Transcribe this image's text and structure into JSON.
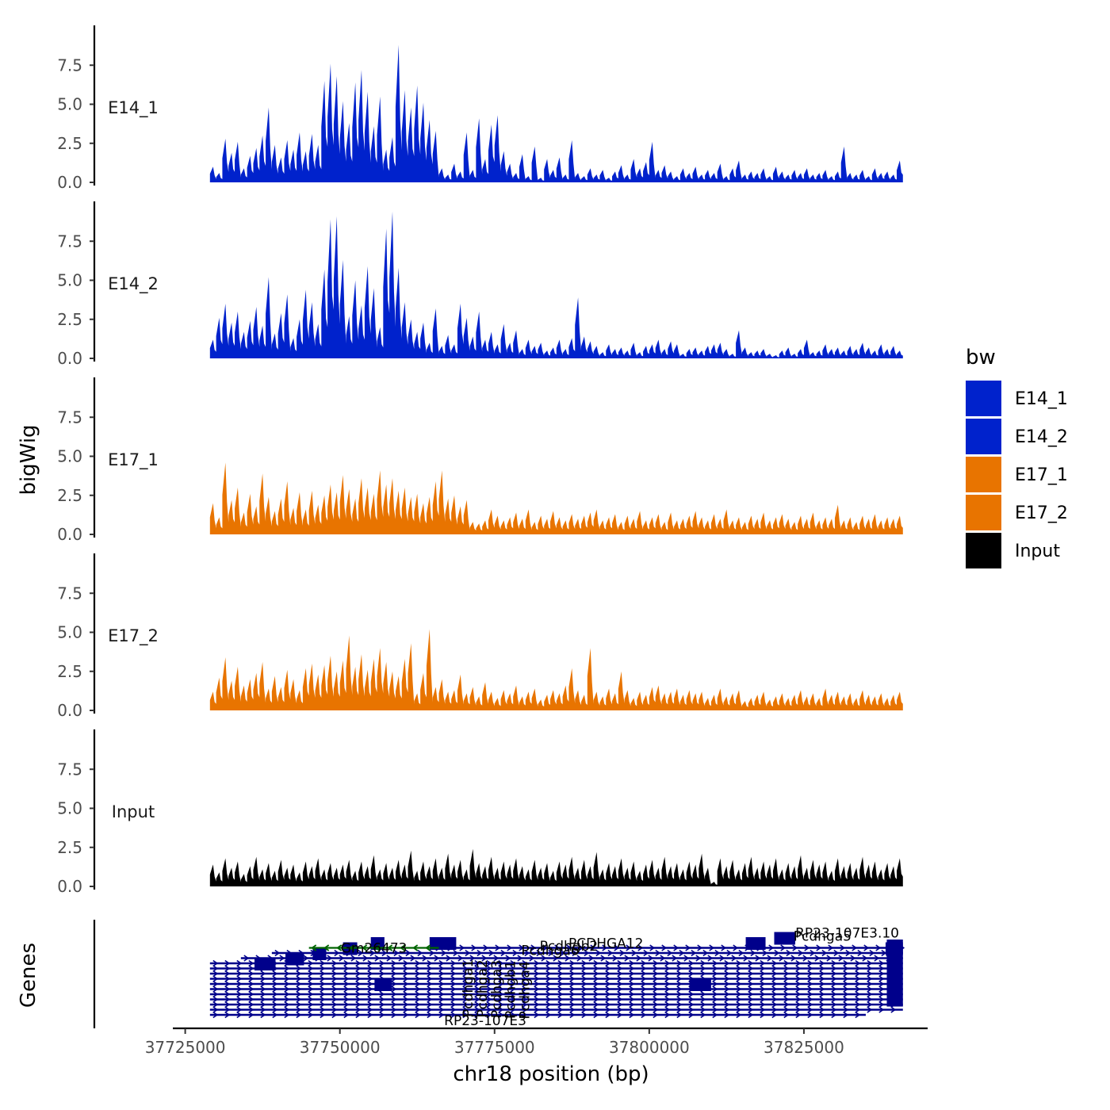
{
  "chart_data": {
    "type": "area",
    "title": "",
    "xlabel": "chr18 position (bp)",
    "ylabel": "bigWig",
    "genes_label": "Genes",
    "xlim": [
      37723000,
      37845000
    ],
    "x_ticks": [
      37725000,
      37750000,
      37775000,
      37800000,
      37825000
    ],
    "x_tick_labels": [
      "37725000",
      "37750000",
      "37775000",
      "37800000",
      "37825000"
    ],
    "ylim": [
      0,
      10
    ],
    "y_ticks": [
      0,
      2.5,
      5,
      7.5
    ],
    "y_tick_labels": [
      "0.0",
      "2.5",
      "5.0",
      "7.5"
    ],
    "colors": {
      "E14": "#0022cc",
      "E17": "#e87400",
      "Input": "#000000",
      "gene": "#00008b",
      "gene_minus": "#006400"
    },
    "series": [
      {
        "name": "E14_1",
        "color": "#0022cc",
        "x_start": 37729000,
        "x_end": 37841000,
        "values": [
          1.0,
          0.6,
          2.8,
          1.9,
          2.6,
          0.9,
          1.7,
          2.2,
          3.0,
          4.8,
          2.4,
          1.6,
          2.7,
          2.1,
          3.2,
          2.0,
          3.1,
          2.4,
          6.5,
          7.6,
          6.8,
          5.2,
          3.8,
          6.4,
          7.2,
          5.8,
          3.6,
          5.5,
          2.1,
          2.9,
          8.8,
          5.9,
          4.8,
          6.2,
          5.1,
          4.0,
          3.3,
          0.9,
          0.5,
          1.2,
          0.7,
          3.2,
          0.8,
          4.1,
          1.5,
          3.7,
          4.3,
          2.0,
          1.2,
          0.6,
          1.8,
          0.4,
          2.3,
          0.3,
          1.5,
          0.8,
          1.6,
          0.5,
          2.7,
          0.6,
          0.4,
          0.9,
          0.5,
          0.8,
          0.3,
          0.7,
          1.1,
          0.5,
          1.5,
          0.9,
          1.3,
          2.6,
          0.8,
          1.1,
          0.7,
          0.4,
          0.9,
          0.6,
          1.0,
          0.5,
          0.8,
          0.6,
          1.2,
          0.4,
          0.9,
          1.4,
          0.5,
          0.7,
          0.6,
          0.9,
          0.4,
          1.0,
          0.7,
          0.5,
          0.8,
          0.6,
          0.9,
          0.5,
          0.6,
          0.8,
          0.4,
          0.7,
          2.3,
          0.6,
          0.5,
          0.8,
          0.4,
          0.9,
          0.6,
          0.7,
          0.5,
          1.4
        ]
      },
      {
        "name": "E14_2",
        "color": "#0022cc",
        "x_start": 37729000,
        "x_end": 37841000,
        "values": [
          1.2,
          2.6,
          3.5,
          2.3,
          3.0,
          1.7,
          2.4,
          3.3,
          2.1,
          5.2,
          1.6,
          2.9,
          4.1,
          1.3,
          2.5,
          4.4,
          3.6,
          2.2,
          5.7,
          8.9,
          9.1,
          6.3,
          2.7,
          5.0,
          3.4,
          5.9,
          4.5,
          2.0,
          8.3,
          9.4,
          5.8,
          3.6,
          2.5,
          1.7,
          2.3,
          1.0,
          3.2,
          0.8,
          1.5,
          0.9,
          3.5,
          2.6,
          1.4,
          3.0,
          1.2,
          1.7,
          0.9,
          2.2,
          1.0,
          1.8,
          0.6,
          1.2,
          0.8,
          1.0,
          0.5,
          0.7,
          1.2,
          0.6,
          1.3,
          3.9,
          1.4,
          1.1,
          0.8,
          0.4,
          0.9,
          0.6,
          0.7,
          0.5,
          1.0,
          0.4,
          0.8,
          0.9,
          1.2,
          0.6,
          1.1,
          0.9,
          0.3,
          0.6,
          0.7,
          0.5,
          0.8,
          0.9,
          1.0,
          0.6,
          0.3,
          1.8,
          0.7,
          0.4,
          0.5,
          0.6,
          0.3,
          0.2,
          0.5,
          0.7,
          0.3,
          0.6,
          1.2,
          0.4,
          0.5,
          0.9,
          0.6,
          0.7,
          0.5,
          0.8,
          0.6,
          1.0,
          0.7,
          0.5,
          0.9,
          0.6,
          0.8,
          0.5
        ]
      },
      {
        "name": "E17_1",
        "color": "#e87400",
        "x_start": 37729000,
        "x_end": 37841000,
        "values": [
          2.0,
          1.1,
          4.6,
          2.2,
          3.0,
          1.4,
          2.6,
          1.8,
          3.9,
          2.4,
          1.5,
          2.3,
          3.4,
          1.7,
          2.7,
          1.6,
          2.8,
          1.9,
          2.5,
          3.2,
          2.7,
          3.8,
          2.9,
          2.3,
          3.6,
          3.0,
          2.6,
          4.1,
          3.2,
          3.6,
          2.8,
          3.0,
          2.4,
          2.6,
          2.0,
          2.4,
          3.4,
          4.1,
          2.3,
          2.5,
          1.8,
          2.2,
          0.8,
          0.7,
          0.9,
          1.6,
          1.2,
          0.9,
          1.1,
          1.4,
          1.0,
          1.6,
          0.8,
          1.2,
          1.0,
          1.5,
          1.1,
          0.9,
          1.3,
          1.0,
          1.2,
          1.4,
          1.6,
          0.9,
          1.1,
          1.3,
          0.8,
          1.2,
          1.0,
          1.5,
          0.9,
          1.1,
          1.3,
          0.8,
          1.4,
          0.9,
          1.0,
          1.2,
          1.5,
          1.1,
          0.9,
          1.3,
          1.0,
          1.6,
          0.9,
          1.1,
          0.8,
          1.2,
          1.0,
          1.4,
          0.9,
          1.1,
          1.3,
          1.0,
          0.8,
          1.2,
          1.0,
          1.4,
          0.9,
          1.1,
          1.0,
          1.9,
          0.9,
          1.1,
          0.8,
          1.2,
          1.0,
          1.3,
          0.9,
          1.1,
          1.0,
          1.2
        ]
      },
      {
        "name": "E17_2",
        "color": "#e87400",
        "x_start": 37729000,
        "x_end": 37841000,
        "values": [
          1.2,
          2.1,
          3.4,
          1.9,
          2.8,
          1.6,
          2.0,
          2.4,
          3.1,
          1.4,
          2.2,
          1.5,
          2.6,
          2.0,
          1.3,
          2.7,
          3.0,
          2.3,
          2.9,
          3.5,
          2.5,
          3.2,
          4.8,
          2.8,
          3.6,
          2.6,
          3.3,
          4.0,
          3.1,
          2.5,
          2.2,
          3.3,
          4.3,
          1.1,
          2.4,
          5.2,
          1.5,
          2.0,
          1.2,
          1.3,
          2.3,
          1.1,
          1.5,
          0.9,
          1.8,
          1.2,
          0.8,
          1.3,
          1.1,
          1.6,
          0.9,
          1.2,
          1.4,
          0.7,
          1.0,
          1.3,
          1.1,
          1.6,
          2.7,
          1.3,
          1.0,
          4.0,
          1.2,
          0.9,
          1.4,
          1.1,
          2.5,
          1.3,
          0.8,
          1.2,
          1.0,
          1.5,
          1.6,
          1.1,
          1.2,
          1.4,
          1.0,
          1.3,
          1.1,
          1.2,
          0.8,
          1.0,
          1.4,
          0.9,
          1.1,
          1.3,
          0.6,
          0.8,
          1.0,
          1.2,
          0.7,
          0.9,
          1.1,
          0.8,
          1.0,
          1.3,
          0.9,
          1.1,
          0.8,
          1.4,
          1.0,
          1.2,
          0.9,
          1.1,
          0.8,
          1.3,
          1.0,
          0.9,
          1.1,
          0.8,
          1.0,
          1.2
        ]
      },
      {
        "name": "Input",
        "color": "#000000",
        "x_start": 37729000,
        "x_end": 37841000,
        "values": [
          1.4,
          0.9,
          1.8,
          1.2,
          1.6,
          0.8,
          1.3,
          1.9,
          1.1,
          1.5,
          1.0,
          1.7,
          1.2,
          1.4,
          0.9,
          1.6,
          1.3,
          1.8,
          1.1,
          1.5,
          1.2,
          1.4,
          1.7,
          1.0,
          1.6,
          1.3,
          2.0,
          1.1,
          1.5,
          1.2,
          1.7,
          1.4,
          2.3,
          1.0,
          1.6,
          1.3,
          1.8,
          1.2,
          2.1,
          1.4,
          1.7,
          1.1,
          2.4,
          1.5,
          1.3,
          1.9,
          1.2,
          1.6,
          1.4,
          1.8,
          1.3,
          1.1,
          1.7,
          1.2,
          1.5,
          1.0,
          1.6,
          1.4,
          1.9,
          1.2,
          1.7,
          1.3,
          2.2,
          1.1,
          1.5,
          1.3,
          1.8,
          1.2,
          1.6,
          1.0,
          1.4,
          1.7,
          1.2,
          1.9,
          1.3,
          1.5,
          1.1,
          1.6,
          1.4,
          2.1,
          1.2,
          0.3,
          1.8,
          1.3,
          1.7,
          1.1,
          1.5,
          1.9,
          1.2,
          1.6,
          1.4,
          1.8,
          1.1,
          1.5,
          1.3,
          2.0,
          1.2,
          1.7,
          1.4,
          1.6,
          1.0,
          1.8,
          1.3,
          1.5,
          1.2,
          1.9,
          1.4,
          1.6,
          1.1,
          1.5,
          1.3,
          1.8
        ]
      }
    ],
    "legend": {
      "title": "bw",
      "position": "right",
      "entries": [
        {
          "label": "E14_1",
          "color": "#0022cc"
        },
        {
          "label": "E14_2",
          "color": "#0022cc"
        },
        {
          "label": "E17_1",
          "color": "#e87400"
        },
        {
          "label": "E17_2",
          "color": "#e87400"
        },
        {
          "label": "Input",
          "color": "#000000"
        }
      ]
    },
    "gene_track": {
      "strand_symbol_plus": "⟩",
      "transcripts": [
        {
          "start": 37765000,
          "end": 37841000,
          "row": 1,
          "strand": "+"
        },
        {
          "start": 37739000,
          "end": 37841000,
          "row": 2,
          "strand": "+"
        },
        {
          "start": 37734000,
          "end": 37841000,
          "row": 3,
          "strand": "+"
        },
        {
          "start": 37729000,
          "end": 37841000,
          "row": 4,
          "strand": "+"
        },
        {
          "start": 37729000,
          "end": 37841000,
          "row": 5,
          "strand": "+"
        },
        {
          "start": 37729000,
          "end": 37841000,
          "row": 6,
          "strand": "+"
        },
        {
          "start": 37729000,
          "end": 37841000,
          "row": 7,
          "strand": "+"
        },
        {
          "start": 37729000,
          "end": 37841000,
          "row": 8,
          "strand": "+"
        },
        {
          "start": 37729000,
          "end": 37841000,
          "row": 9,
          "strand": "+"
        },
        {
          "start": 37729000,
          "end": 37841000,
          "row": 10,
          "strand": "+"
        },
        {
          "start": 37729000,
          "end": 37841000,
          "row": 11,
          "strand": "+"
        },
        {
          "start": 37729000,
          "end": 37841000,
          "row": 12,
          "strand": "+"
        },
        {
          "start": 37729000,
          "end": 37841000,
          "row": 13,
          "strand": "+"
        },
        {
          "start": 37729000,
          "end": 37835000,
          "row": 14,
          "strand": "+"
        }
      ],
      "exons": [
        {
          "start": 37736200,
          "end": 37739600,
          "row": 4
        },
        {
          "start": 37741200,
          "end": 37744200,
          "row": 3
        },
        {
          "start": 37745600,
          "end": 37747800,
          "row": 2
        },
        {
          "start": 37750500,
          "end": 37752800,
          "row": 1
        },
        {
          "start": 37755000,
          "end": 37757200,
          "row": 0
        },
        {
          "start": 37764500,
          "end": 37768800,
          "row": 0
        },
        {
          "start": 37755600,
          "end": 37758400,
          "row": 8
        },
        {
          "start": 37806500,
          "end": 37810000,
          "row": 8
        },
        {
          "start": 37815600,
          "end": 37818800,
          "row": 0
        },
        {
          "start": 37820200,
          "end": 37823600,
          "row": -1
        },
        {
          "start": 37838200,
          "end": 37841000,
          "row": 1
        }
      ],
      "minus_strand_gene": {
        "start": 37745000,
        "end": 37766000,
        "row": 1
      },
      "labels": [
        {
          "text": "RP23-107E3.10",
          "x": 37832000,
          "row": -1.6
        },
        {
          "text": "Pcdhga5",
          "x": 37828000,
          "row": -1.0
        },
        {
          "text": "Gm26473",
          "x": 37755500,
          "row": 1.3
        },
        {
          "text": "PCDHGA12",
          "x": 37793000,
          "row": 0.4
        },
        {
          "text": "Pcdhgb2",
          "x": 37787000,
          "row": 0.9
        },
        {
          "text": "Pcdhga6",
          "x": 37784000,
          "row": 1.8
        },
        {
          "text": "RP23-107E3",
          "x": 37773500,
          "row": 15.4
        },
        {
          "text": "Pcdhga1",
          "x": 37774500,
          "row": 4.5
        },
        {
          "text": "Pcdhga2",
          "x": 37776800,
          "row": 4.6
        },
        {
          "text": "Pcdhga3",
          "x": 37779100,
          "row": 4.7
        },
        {
          "text": "Pcdhgb1",
          "x": 37781400,
          "row": 4.8
        },
        {
          "text": "Pcdhga4",
          "x": 37783700,
          "row": 4.9
        }
      ]
    }
  }
}
